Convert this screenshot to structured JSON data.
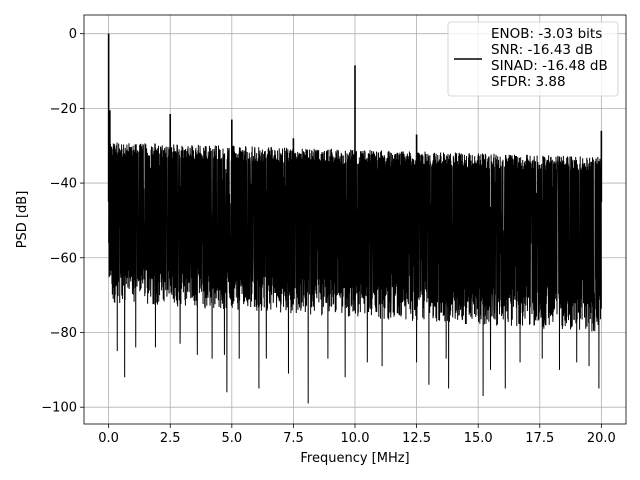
{
  "chart_data": {
    "type": "line",
    "title": "",
    "xlabel": "Frequency [MHz]",
    "ylabel": "PSD [dB]",
    "xlim": [
      -1.0,
      21.0
    ],
    "ylim": [
      -104.5,
      5.0
    ],
    "xticks": [
      0.0,
      2.5,
      5.0,
      7.5,
      10.0,
      12.5,
      15.0,
      17.5,
      20.0
    ],
    "xtick_labels": [
      "0.0",
      "2.5",
      "5.0",
      "7.5",
      "10.0",
      "12.5",
      "15.0",
      "17.5",
      "20.0"
    ],
    "yticks": [
      0,
      -20,
      -40,
      -60,
      -80,
      -100
    ],
    "ytick_labels": [
      "0",
      "−20",
      "−40",
      "−60",
      "−80",
      "−100"
    ],
    "grid": true,
    "legend_position": "top-right",
    "series": [
      {
        "name": "ENOB: -3.03 bits\nSNR: -16.43 dB\nSINAD: -16.48 dB\nSFDR: 3.88",
        "color": "#000000",
        "noise_floor": {
          "x_start": 0.0,
          "x_end": 20.0,
          "upper_db": [
            -29,
            -33
          ],
          "lower_db": [
            -70,
            -78
          ]
        },
        "peaks": [
          {
            "x": 0.0,
            "y": 0.0
          },
          {
            "x": 0.05,
            "y": -20.5
          },
          {
            "x": 2.5,
            "y": -21.5
          },
          {
            "x": 5.0,
            "y": -23.0
          },
          {
            "x": 7.5,
            "y": -28.0
          },
          {
            "x": 10.0,
            "y": -8.5
          },
          {
            "x": 12.5,
            "y": -27.0
          },
          {
            "x": 20.0,
            "y": -26.0
          }
        ],
        "dips": [
          {
            "x": 0.35,
            "y": -85
          },
          {
            "x": 0.65,
            "y": -92
          },
          {
            "x": 1.1,
            "y": -84
          },
          {
            "x": 1.9,
            "y": -84
          },
          {
            "x": 2.9,
            "y": -83
          },
          {
            "x": 3.6,
            "y": -86
          },
          {
            "x": 4.2,
            "y": -87
          },
          {
            "x": 4.7,
            "y": -86
          },
          {
            "x": 4.8,
            "y": -96
          },
          {
            "x": 5.3,
            "y": -87
          },
          {
            "x": 6.1,
            "y": -95
          },
          {
            "x": 6.4,
            "y": -87
          },
          {
            "x": 7.3,
            "y": -91
          },
          {
            "x": 8.1,
            "y": -99
          },
          {
            "x": 8.9,
            "y": -87
          },
          {
            "x": 9.6,
            "y": -92
          },
          {
            "x": 10.5,
            "y": -88
          },
          {
            "x": 11.1,
            "y": -89
          },
          {
            "x": 12.5,
            "y": -88
          },
          {
            "x": 13.0,
            "y": -94
          },
          {
            "x": 13.7,
            "y": -87
          },
          {
            "x": 13.8,
            "y": -95
          },
          {
            "x": 15.2,
            "y": -97
          },
          {
            "x": 15.5,
            "y": -90
          },
          {
            "x": 16.1,
            "y": -95
          },
          {
            "x": 16.7,
            "y": -88
          },
          {
            "x": 17.6,
            "y": -87
          },
          {
            "x": 18.3,
            "y": -90
          },
          {
            "x": 19.0,
            "y": -88
          },
          {
            "x": 19.5,
            "y": -89
          },
          {
            "x": 19.9,
            "y": -95
          }
        ]
      }
    ]
  }
}
